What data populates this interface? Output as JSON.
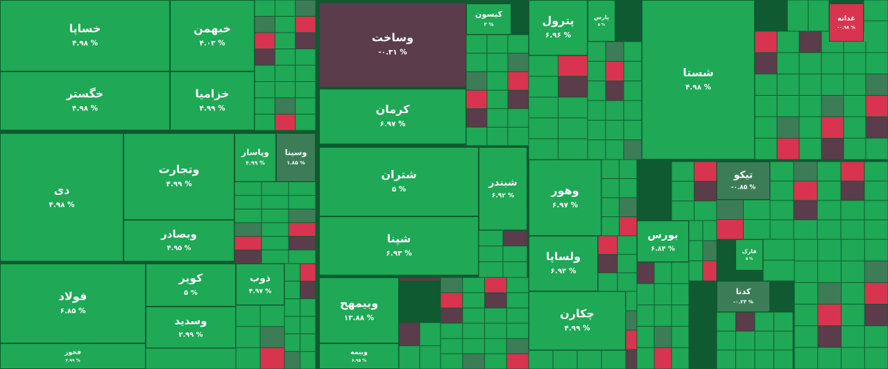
{
  "chart_data": {
    "type": "treemap",
    "categories": [
      "خساپا",
      "خگستر",
      "خبهمن",
      "خزامیا",
      "دی",
      "وتجارت",
      "وبصادر",
      "وپاسار",
      "وسینا",
      "فولاد",
      "کویر",
      "وسدید",
      "فخوز",
      "ذوب",
      "وساخت",
      "کرمان",
      "شتران",
      "شپنا",
      "شبندر",
      "وبیمهح",
      "وبیمه",
      "کیسون",
      "پترول",
      "وهور",
      "ولساپا",
      "چکارن",
      "پارس",
      "شستا",
      "بورس",
      "تیکو",
      "کدنا",
      "فارک",
      "غدانه"
    ],
    "values": [
      4.98,
      4.98,
      4.03,
      4.99,
      4.98,
      4.99,
      4.95,
      4.99,
      1.85,
      6.85,
      5,
      2.99,
      4.99,
      4.97,
      -0.31,
      6.97,
      5,
      6.93,
      6.92,
      13.88,
      6.95,
      3,
      6.96,
      6.97,
      6.93,
      4.99,
      5,
      4.98,
      6.84,
      -0.85,
      -0.23,
      5,
      -0.98
    ],
    "value_labels": [
      "۴.۹۸ %",
      "۴.۹۸ %",
      "۴.۰۳ %",
      "۴.۹۹ %",
      "۴.۹۸ %",
      "۴.۹۹ %",
      "۴.۹۵ %",
      "۴.۹۹ %",
      "۱.۸۵ %",
      "۶.۸۵ %",
      "۵ %",
      "۲.۹۹ %",
      "۴.۹۹ %",
      "۴.۹۷ %",
      "-۰.۳۱ %",
      "۶.۹۷ %",
      "۵ %",
      "۶.۹۳ %",
      "۶.۹۲ %",
      "۱۳.۸۸ %",
      "۶.۹۵ %",
      "۳ %",
      "۶.۹۶ %",
      "۶.۹۷ %",
      "۶.۹۳ %",
      "۴.۹۹ %",
      "۵ %",
      "۴.۹۸ %",
      "۶.۸۴ %",
      "-۰.۸۵ %",
      "-۰.۲۳ %",
      "۵ %",
      "-۰.۹۸ %"
    ],
    "colors": {
      "up": "#1fa855",
      "mild": "#3c7d57",
      "down": "#5a3c4a",
      "deep": "#d8344f"
    }
  }
}
